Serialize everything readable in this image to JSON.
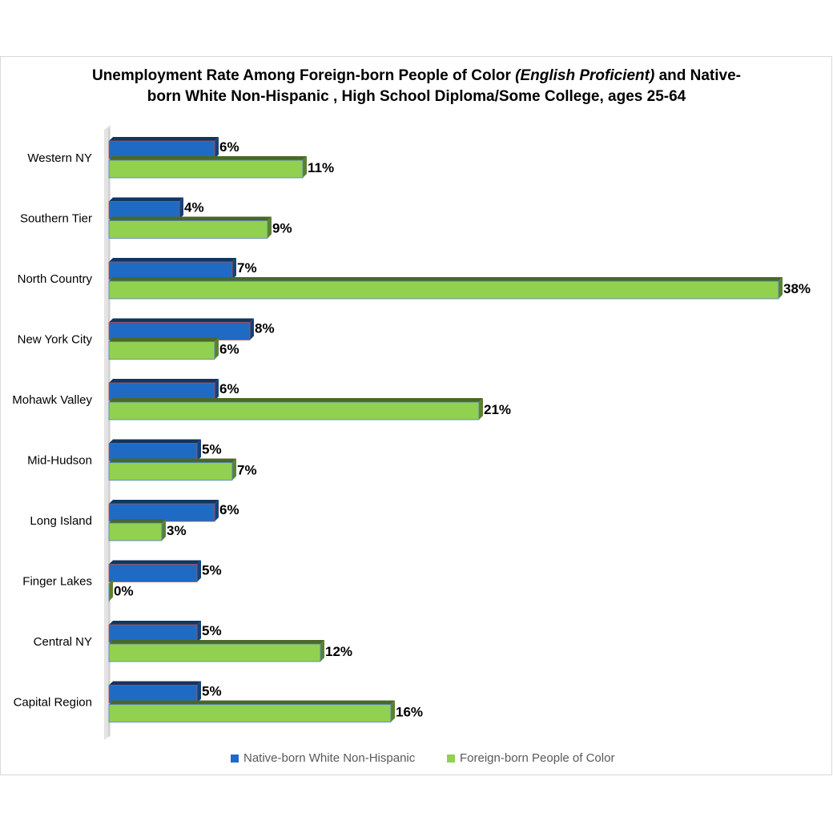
{
  "chart_data": {
    "type": "bar",
    "orientation": "horizontal",
    "title_line1_pre": "Unemployment Rate Among Foreign-born People of Color ",
    "title_line1_em": "(English Proficient)",
    "title_line1_post": " and Native-",
    "title_line2": "born White Non-Hispanic , High School Diploma/Some College, ages 25-64",
    "categories": [
      "Western NY",
      "Southern Tier",
      "North Country",
      "New York City",
      "Mohawk Valley",
      "Mid-Hudson",
      "Long Island",
      "Finger Lakes",
      "Central NY",
      "Capital Region"
    ],
    "series": [
      {
        "name": "Native-born White Non-Hispanic",
        "color": "#1f6bc4",
        "values": [
          6,
          4,
          7,
          8,
          6,
          5,
          6,
          5,
          5,
          5
        ],
        "labels": [
          "6%",
          "4%",
          "7%",
          "8%",
          "6%",
          "5%",
          "6%",
          "5%",
          "5%",
          "5%"
        ]
      },
      {
        "name": "Foreign-born People of Color",
        "color": "#92d050",
        "values": [
          11,
          9,
          38,
          6,
          21,
          7,
          3,
          0,
          12,
          16
        ],
        "labels": [
          "11%",
          "9%",
          "38%",
          "6%",
          "21%",
          "7%",
          "3%",
          "0%",
          "12%",
          "16%"
        ]
      }
    ],
    "xlim": [
      0,
      38
    ],
    "grid": false,
    "legend_position": "bottom"
  }
}
